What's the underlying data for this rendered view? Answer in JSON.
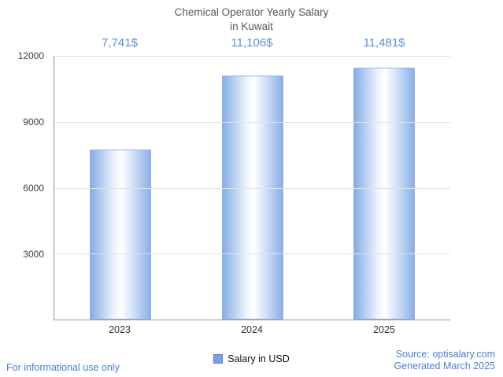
{
  "title_lines": [
    "Chemical Operator Yearly Salary",
    "in Kuwait"
  ],
  "chart_data": {
    "type": "bar",
    "title": "Chemical Operator Yearly Salary in Kuwait",
    "categories": [
      "2023",
      "2024",
      "2025"
    ],
    "series": [
      {
        "name": "Salary in USD",
        "values": [
          7741,
          11106,
          11481
        ]
      }
    ],
    "value_labels": [
      "7,741$",
      "11,106$",
      "11,481$"
    ],
    "xlabel": "",
    "ylabel": "",
    "ylim": [
      0,
      12000
    ],
    "yticks": [
      3000,
      6000,
      9000,
      12000
    ],
    "grid": true,
    "legend_position": "bottom"
  },
  "footer": {
    "left": "For informational use only",
    "source": "Source: optisalary.com",
    "generated": "Generated March 2025"
  },
  "colors": {
    "accent_blue": "#5b8fd6",
    "bar_edge": "#86ade6",
    "bar_center": "#ffffff",
    "bar_border": "#8fb2e6",
    "footer_blue": "#4a7fd6",
    "axis": "#9a9a9a",
    "gridline": "#e2e2e2",
    "title_gray": "#595959"
  }
}
